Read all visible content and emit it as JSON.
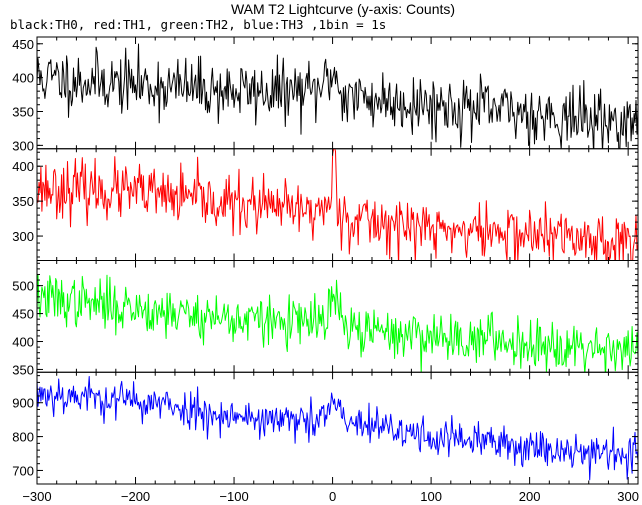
{
  "chart_data": {
    "type": "line",
    "title": "WAM T2 Lightcurve (y-axis: Counts)",
    "subtitle": "black:TH0, red:TH1, green:TH2, blue:TH3 ,1bin = 1s",
    "xlim": [
      -300,
      310
    ],
    "x_ticks": [
      -300,
      -200,
      -100,
      0,
      100,
      200,
      300
    ],
    "x_tick_labels": [
      "−300",
      "−200",
      "−100",
      "0",
      "100",
      "200",
      "300"
    ],
    "x_step": 1,
    "grid": false,
    "panels": [
      {
        "name": "TH0",
        "color": "#000000",
        "ylim": [
          295,
          460
        ],
        "y_ticks": [
          300,
          350,
          400,
          450
        ],
        "y_tick_labels": [
          "300",
          "350",
          "400",
          "450"
        ],
        "trend": [
          [
            -300,
            400
          ],
          [
            -100,
            380
          ],
          [
            -20,
            378
          ],
          [
            0,
            390
          ],
          [
            10,
            372
          ],
          [
            100,
            360
          ],
          [
            200,
            348
          ],
          [
            300,
            332
          ]
        ],
        "noise": 22,
        "bump": {
          "x": 0,
          "height": 18,
          "width": 8
        },
        "seed": 11
      },
      {
        "name": "TH1",
        "color": "#ff0000",
        "ylim": [
          265,
          425
        ],
        "y_ticks": [
          300,
          350,
          400
        ],
        "y_tick_labels": [
          "300",
          "350",
          "400"
        ],
        "trend": [
          [
            -300,
            370
          ],
          [
            -200,
            362
          ],
          [
            -100,
            345
          ],
          [
            -20,
            335
          ],
          [
            0,
            345
          ],
          [
            15,
            325
          ],
          [
            100,
            310
          ],
          [
            200,
            302
          ],
          [
            300,
            292
          ]
        ],
        "noise": 20,
        "bump": {
          "x": 2,
          "height": 70,
          "width": 3
        },
        "seed": 23
      },
      {
        "name": "TH2",
        "color": "#00ff00",
        "ylim": [
          345,
          545
        ],
        "y_ticks": [
          350,
          400,
          450,
          500
        ],
        "y_tick_labels": [
          "350",
          "400",
          "450",
          "500"
        ],
        "trend": [
          [
            -300,
            478
          ],
          [
            -200,
            460
          ],
          [
            -100,
            440
          ],
          [
            -20,
            432
          ],
          [
            0,
            445
          ],
          [
            15,
            420
          ],
          [
            100,
            410
          ],
          [
            200,
            398
          ],
          [
            300,
            388
          ]
        ],
        "noise": 22,
        "bump": {
          "x": 3,
          "height": 40,
          "width": 5
        },
        "seed": 37
      },
      {
        "name": "TH3",
        "color": "#0000ff",
        "ylim": [
          660,
          990
        ],
        "y_ticks": [
          700,
          800,
          900
        ],
        "y_tick_labels": [
          "700",
          "800",
          "900"
        ],
        "trend": [
          [
            -300,
            930
          ],
          [
            -200,
            905
          ],
          [
            -100,
            860
          ],
          [
            -20,
            840
          ],
          [
            0,
            870
          ],
          [
            15,
            840
          ],
          [
            100,
            800
          ],
          [
            200,
            770
          ],
          [
            300,
            748
          ]
        ],
        "noise": 28,
        "bump": {
          "x": 3,
          "height": 35,
          "width": 6
        },
        "seed": 53
      }
    ]
  }
}
